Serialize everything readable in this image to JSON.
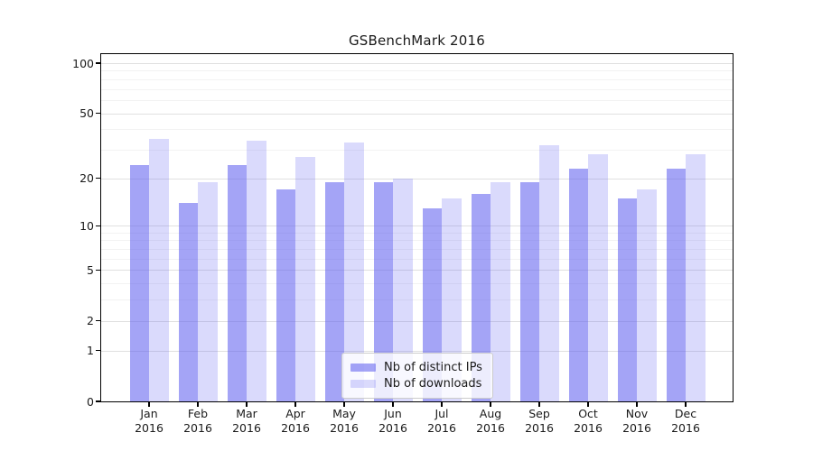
{
  "chart_data": {
    "type": "bar",
    "title": "GSBenchMark 2016",
    "categories": [
      "Jan 2016",
      "Feb 2016",
      "Mar 2016",
      "Apr 2016",
      "May 2016",
      "Jun 2016",
      "Jul 2016",
      "Aug 2016",
      "Sep 2016",
      "Oct 2016",
      "Nov 2016",
      "Dec 2016"
    ],
    "series": [
      {
        "name": "Nb of distinct IPs",
        "color": "rgba(95,95,240,0.57)",
        "values": [
          24,
          14,
          24,
          17,
          19,
          19,
          13,
          16,
          19,
          23,
          15,
          23
        ]
      },
      {
        "name": "Nb of downloads",
        "color": "rgba(95,95,240,0.23)",
        "values": [
          35,
          19,
          34,
          27,
          33,
          20,
          15,
          19,
          32,
          28,
          17,
          28
        ]
      }
    ],
    "y_axis": {
      "scale": "log1p",
      "tick_labels": [
        100,
        50,
        20,
        10,
        5,
        2,
        1,
        0
      ],
      "minor_ticks": [
        3,
        4,
        6,
        7,
        8,
        9,
        30,
        40,
        60,
        70,
        80,
        90
      ],
      "ylim": [
        0,
        113
      ]
    },
    "xlabel": "",
    "ylabel": "",
    "grid": "on",
    "legend_position": "lower center inside"
  },
  "colors": {
    "grid_major": "#e0e0e0",
    "grid_minor": "#f2f2f2",
    "axis_line": "#000000",
    "text": "#1a1a1a",
    "legend_border": "#cccccc",
    "legend_background": "rgba(255,255,255,0.8)"
  }
}
